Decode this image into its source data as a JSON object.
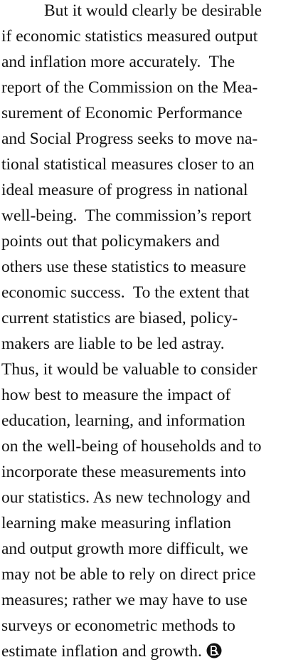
{
  "paragraph": {
    "lines": [
      "But it would clearly be desirable",
      "if economic statistics measured output",
      "and inflation more accurately.  The",
      "report of the Commission on the Mea-",
      "surement of Economic Performance",
      "and Social Progress seeks to move na-",
      "tional statistical measures closer to an",
      "ideal measure of progress in national",
      "well-being.  The commission’s report",
      "points out that policymakers and",
      "others use these statistics to measure",
      "economic success.  To the extent that",
      "current statistics are biased, policy-",
      "makers are liable to be led astray.",
      "Thus, it would be valuable to consider",
      "how best to measure the impact of",
      "education, learning, and information",
      "on the well-being of households and to",
      "incorporate these measurements into",
      "our statistics. As new technology and",
      "learning make measuring inflation",
      "and output growth more difficult, we",
      "may not be able to rely on direct price",
      "measures; rather we may have to use",
      "surveys or econometric methods to",
      "estimate inflation and growth."
    ]
  }
}
